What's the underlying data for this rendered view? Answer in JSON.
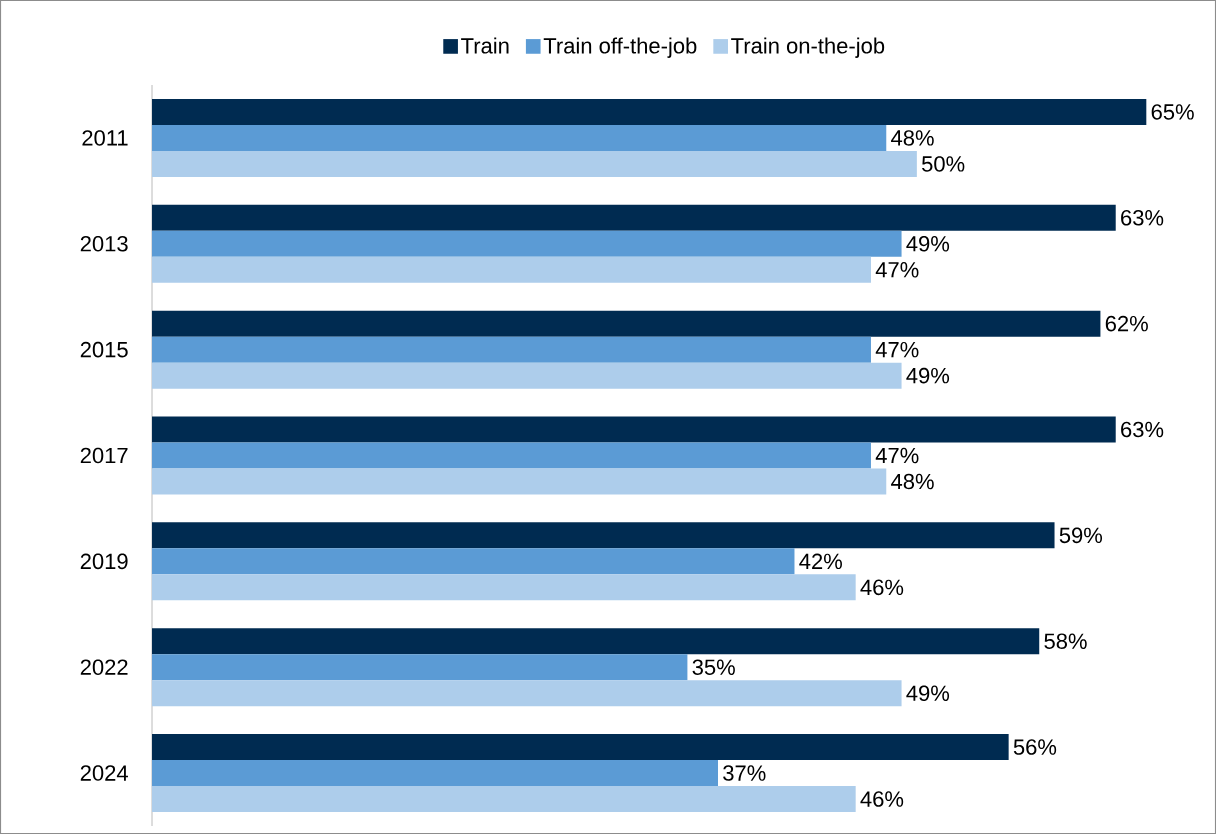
{
  "chart_data": {
    "type": "bar",
    "orientation": "horizontal",
    "legend": "top",
    "categories": [
      "2011",
      "2013",
      "2015",
      "2017",
      "2019",
      "2022",
      "2024"
    ],
    "series": [
      {
        "name": "Train",
        "color": "#002b51",
        "values": [
          65,
          63,
          62,
          63,
          59,
          58,
          56
        ],
        "value_labels": [
          "65%",
          "63%",
          "62%",
          "63%",
          "59%",
          "58%",
          "56%"
        ]
      },
      {
        "name": "Train off-the-job",
        "color": "#5b9bd5",
        "values": [
          48,
          49,
          47,
          47,
          42,
          35,
          37
        ],
        "value_labels": [
          "48%",
          "49%",
          "47%",
          "47%",
          "42%",
          "35%",
          "37%"
        ]
      },
      {
        "name": "Train on-the-job",
        "color": "#adcdeb",
        "values": [
          50,
          47,
          49,
          48,
          46,
          49,
          46
        ],
        "value_labels": [
          "50%",
          "47%",
          "49%",
          "48%",
          "46%",
          "49%",
          "46%"
        ]
      }
    ]
  }
}
